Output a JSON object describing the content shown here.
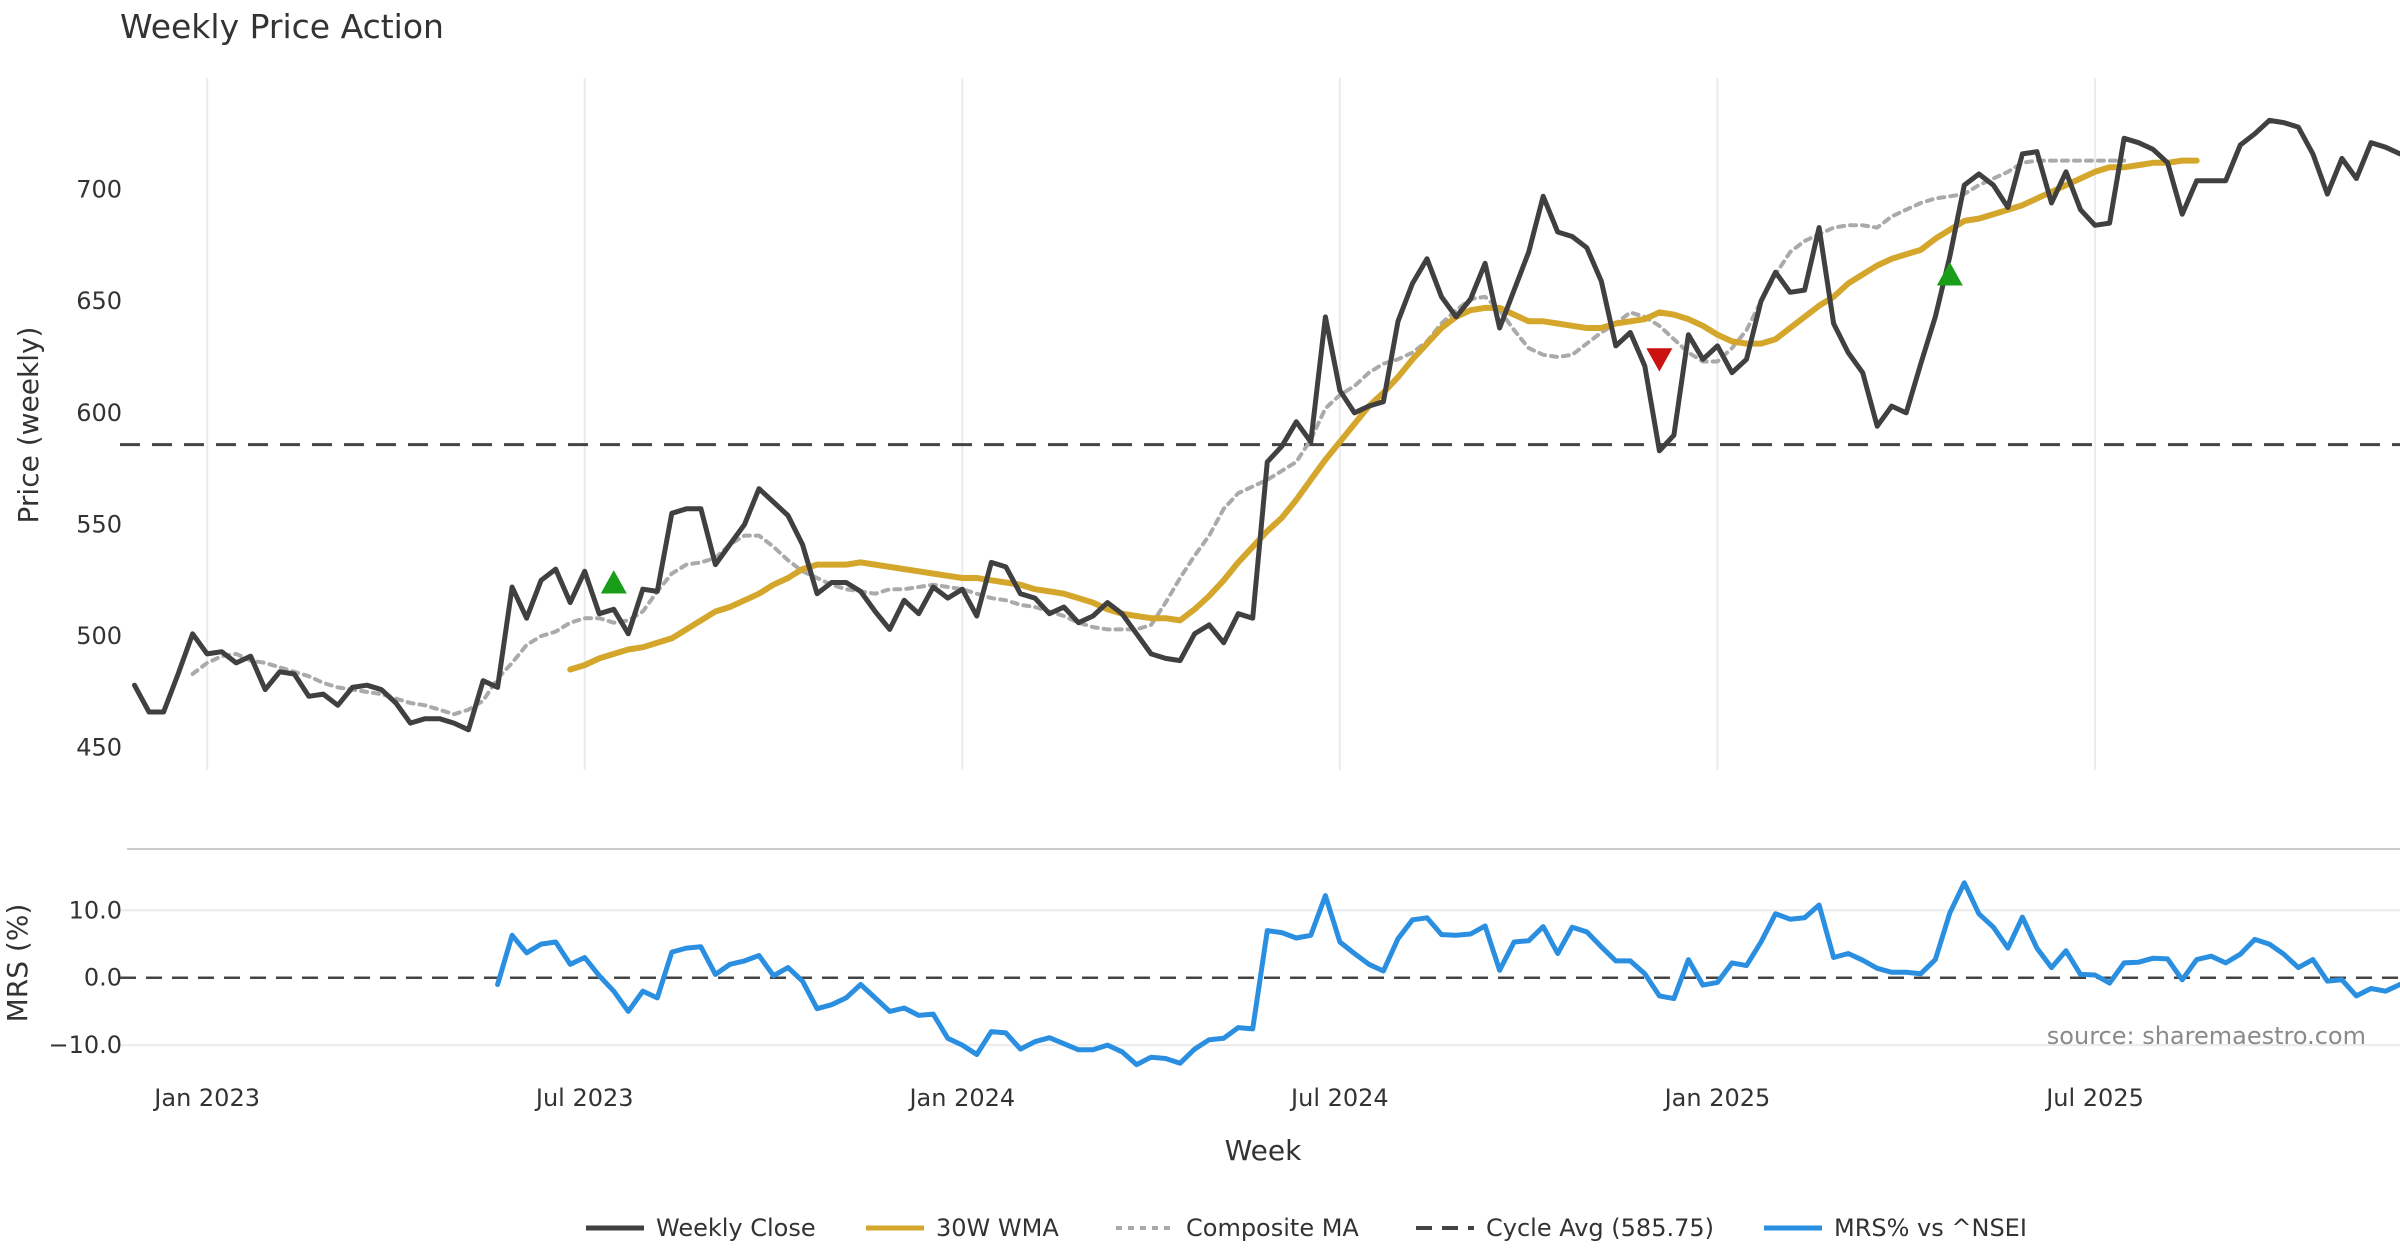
{
  "chart_data": [
    {
      "type": "line",
      "title": "Weekly Price Action",
      "ylabel": "Price (weekly)",
      "ylim": [
        440,
        750
      ],
      "yticks": [
        450,
        500,
        550,
        600,
        650,
        700
      ],
      "x_range": [
        -6,
        151
      ],
      "x_ticks": [
        {
          "week": 0,
          "label": "Jan 2023"
        },
        {
          "week": 26,
          "label": "Jul 2023"
        },
        {
          "week": 52,
          "label": "Jan 2024"
        },
        {
          "week": 78,
          "label": "Jul 2024"
        },
        {
          "week": 104,
          "label": "Jan 2025"
        },
        {
          "week": 130,
          "label": "Jul 2025"
        }
      ],
      "week_start": -5,
      "reference_line": {
        "name": "Cycle Avg (585.75)",
        "value": 585.75
      },
      "series": [
        {
          "name": "Weekly Close",
          "color": "#404040",
          "values": [
            478,
            466,
            466,
            483,
            501,
            492,
            493,
            488,
            491,
            476,
            484,
            483,
            473,
            474,
            469,
            477,
            478,
            476,
            470,
            461,
            463,
            463,
            461,
            458,
            480,
            477,
            522,
            508,
            525,
            530,
            515,
            529,
            510,
            512,
            501,
            521,
            520,
            555,
            557,
            557,
            532,
            541,
            550,
            566,
            560,
            554,
            541,
            519,
            524,
            524,
            520,
            511,
            503,
            516,
            510,
            522,
            517,
            521,
            509,
            533,
            531,
            519,
            517,
            510,
            513,
            506,
            509,
            515,
            510,
            501,
            492,
            490,
            489,
            501,
            505,
            497,
            510,
            508,
            578,
            585,
            596,
            587,
            643,
            610,
            600,
            603,
            605,
            641,
            658,
            669,
            652,
            643,
            651,
            667,
            638,
            655,
            672,
            697,
            681,
            679,
            674,
            659,
            630,
            636,
            621,
            583,
            590,
            635,
            624,
            630,
            618,
            624,
            650,
            663,
            654,
            655,
            683,
            640,
            627,
            618,
            594,
            603,
            600,
            622,
            643,
            670,
            702,
            707,
            702,
            692,
            716,
            717,
            694,
            708,
            691,
            684,
            685,
            723,
            721,
            718,
            712,
            689,
            704,
            704,
            704,
            720,
            725,
            731,
            730,
            728,
            716,
            698,
            714,
            705,
            721,
            719,
            716
          ]
        },
        {
          "name": "30W WMA",
          "color": "#D4A72C",
          "start_week": 25,
          "values": [
            485,
            487,
            490,
            492,
            494,
            495,
            497,
            499,
            503,
            507,
            511,
            513,
            516,
            519,
            523,
            526,
            530,
            532,
            532,
            532,
            533,
            532,
            531,
            530,
            529,
            528,
            527,
            526,
            526,
            525,
            524,
            523,
            521,
            520,
            519,
            517,
            515,
            512,
            510,
            509,
            508,
            508,
            507,
            512,
            518,
            525,
            533,
            540,
            547,
            553,
            561,
            570,
            579,
            587,
            595,
            603,
            609,
            616,
            624,
            631,
            638,
            643,
            646,
            647,
            647,
            644,
            641,
            641,
            640,
            639,
            638,
            638,
            640,
            641,
            642,
            645,
            644,
            642,
            639,
            635,
            632,
            631,
            631,
            633,
            638,
            643,
            648,
            652,
            658,
            662,
            666,
            669,
            671,
            673,
            678,
            682,
            686,
            687,
            689,
            691,
            693,
            696,
            699,
            702,
            705,
            708,
            710,
            710,
            711,
            712,
            712,
            713,
            713
          ]
        },
        {
          "name": "Composite MA",
          "color": "#AAAAAA",
          "start_week": -1,
          "values": [
            483,
            488,
            491,
            492,
            489,
            488,
            486,
            484,
            482,
            479,
            477,
            476,
            475,
            474,
            472,
            470,
            469,
            467,
            465,
            467,
            471,
            481,
            488,
            496,
            500,
            502,
            506,
            508,
            508,
            506,
            507,
            511,
            520,
            528,
            532,
            533,
            535,
            541,
            545,
            545,
            540,
            534,
            529,
            526,
            523,
            521,
            520,
            519,
            521,
            521,
            522,
            523,
            522,
            521,
            519,
            517,
            516,
            514,
            513,
            511,
            509,
            506,
            504,
            503,
            503,
            503,
            505,
            515,
            526,
            536,
            545,
            557,
            564,
            567,
            570,
            574,
            578,
            588,
            602,
            608,
            612,
            618,
            622,
            624,
            627,
            632,
            640,
            646,
            651,
            652,
            646,
            637,
            629,
            626,
            625,
            626,
            631,
            636,
            640,
            645,
            643,
            639,
            633,
            627,
            623,
            623,
            629,
            637,
            650,
            662,
            672,
            677,
            680,
            683,
            684,
            684,
            683,
            688,
            691,
            694,
            696,
            697,
            698,
            702,
            705,
            708,
            712,
            713,
            713,
            713,
            713,
            713,
            713,
            713
          ]
        }
      ],
      "markers": [
        {
          "type": "buy",
          "week": 28,
          "value": 524,
          "color": "#1a9e1a"
        },
        {
          "type": "sell",
          "week": 100,
          "value": 624,
          "color": "#cc1111"
        },
        {
          "type": "buy",
          "week": 120,
          "value": 662,
          "color": "#1a9e1a"
        }
      ]
    },
    {
      "type": "line",
      "xlabel": "Week",
      "ylabel": "MRS (%)",
      "ylim": [
        -14,
        16
      ],
      "yticks": [
        -10.0,
        0.0,
        10.0
      ],
      "ytick_labels": [
        "−10.0",
        "0.0",
        "10.0"
      ],
      "reference_line": {
        "value": 0.0
      },
      "series": [
        {
          "name": "MRS% vs ^NSEI",
          "color": "#2A8FE0",
          "start_week": 20,
          "values": [
            -1,
            6.3,
            3.7,
            5,
            5.3,
            2,
            3,
            0.3,
            -2,
            -5,
            -2,
            -3,
            3.8,
            4.4,
            4.6,
            0.5,
            2,
            2.5,
            3.3,
            0.3,
            1.5,
            -0.5,
            -4.6,
            -4,
            -3,
            -1,
            -3,
            -5,
            -4.5,
            -5.6,
            -5.4,
            -9,
            -10,
            -11.4,
            -8,
            -8.2,
            -10.6,
            -9.5,
            -8.9,
            -9.8,
            -10.7,
            -10.7,
            -10,
            -11,
            -12.9,
            -11.8,
            -12,
            -12.7,
            -10.6,
            -9.2,
            -9,
            -7.4,
            -7.6,
            7,
            6.7,
            5.9,
            6.3,
            12.2,
            5.3,
            3.6,
            2,
            1,
            5.8,
            8.6,
            8.9,
            6.4,
            6.3,
            6.5,
            7.7,
            1.1,
            5.3,
            5.5,
            7.6,
            3.6,
            7.5,
            6.8,
            4.6,
            2.5,
            2.5,
            0.6,
            -2.7,
            -3.1,
            2.7,
            -1.1,
            -0.7,
            2.2,
            1.8,
            5.3,
            9.5,
            8.7,
            8.9,
            10.8,
            3,
            3.6,
            2.6,
            1.4,
            0.8,
            0.8,
            0.6,
            2.7,
            9.6,
            14.1,
            9.5,
            7.5,
            4.4,
            9,
            4.4,
            1.5,
            4,
            0.5,
            0.4,
            -0.8,
            2.2,
            2.3,
            2.9,
            2.8,
            -0.3,
            2.7,
            3.2,
            2.2,
            3.5,
            5.7,
            5,
            3.5,
            1.5,
            2.7,
            -0.5,
            -0.3,
            -2.7,
            -1.6,
            -2,
            -1
          ]
        }
      ],
      "x_ticks": [
        {
          "week": 0,
          "label": "Jan 2023"
        },
        {
          "week": 26,
          "label": "Jul 2023"
        },
        {
          "week": 52,
          "label": "Jan 2024"
        },
        {
          "week": 78,
          "label": "Jul 2024"
        },
        {
          "week": 104,
          "label": "Jan 2025"
        },
        {
          "week": 130,
          "label": "Jul 2025"
        }
      ]
    }
  ],
  "legend": {
    "placement": "bottom-center",
    "entries": [
      {
        "label": "Weekly Close",
        "color": "#404040",
        "style": "solid"
      },
      {
        "label": "30W WMA",
        "color": "#D4A72C",
        "style": "solid"
      },
      {
        "label": "Composite MA",
        "color": "#AAAAAA",
        "style": "dotted"
      },
      {
        "label": "Cycle Avg (585.75)",
        "color": "#444444",
        "style": "dashed"
      },
      {
        "label": "MRS% vs ^NSEI",
        "color": "#2A8FE0",
        "style": "solid"
      }
    ]
  },
  "source": "source: sharemaestro.com"
}
